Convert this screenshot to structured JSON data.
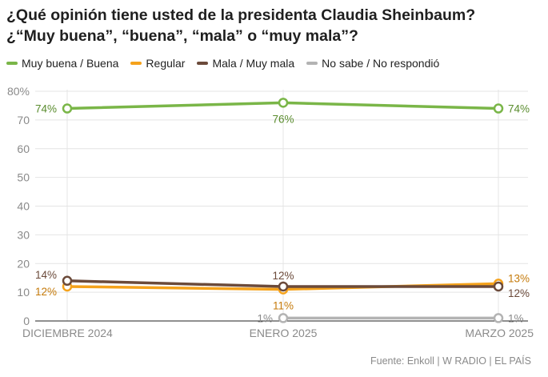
{
  "title_lines": [
    "¿Qué opinión tiene usted de la presidenta Claudia Sheinbaum?",
    "¿“Muy buena”, “buena”, “mala” o “muy mala”?"
  ],
  "source": "Fuente: Enkoll | W RADIO | EL PAÍS",
  "chart_data": {
    "type": "line",
    "title": "¿Qué opinión tiene usted de la presidenta Claudia Sheinbaum? ¿“Muy buena”, “buena”, “mala” o “muy mala”?",
    "categories": [
      "DICIEMBRE 2024",
      "ENERO 2025",
      "MARZO 2025"
    ],
    "ylim": [
      0,
      80
    ],
    "yticks": [
      0,
      10,
      20,
      30,
      40,
      50,
      60,
      70,
      80
    ],
    "ytick_labels": [
      "0",
      "10",
      "20",
      "30",
      "40",
      "50",
      "60",
      "70",
      "80%"
    ],
    "grid": true,
    "legend_position": "top-left",
    "series": [
      {
        "name": "Muy buena / Buena",
        "color": "#7ab648",
        "label_color": "#5a8c2e",
        "values": [
          74,
          76,
          74
        ],
        "labels": [
          "74%",
          "76%",
          "74%"
        ],
        "label_pos": [
          "left",
          "below",
          "right"
        ]
      },
      {
        "name": "Regular",
        "color": "#f5a21b",
        "label_color": "#c57a0a",
        "values": [
          12,
          11,
          13
        ],
        "labels": [
          "12%",
          "11%",
          "13%"
        ],
        "label_pos": [
          "left-below",
          "below",
          "right-above"
        ]
      },
      {
        "name": "Mala / Muy mala",
        "color": "#6b4a3a",
        "label_color": "#6b4a3a",
        "values": [
          14,
          12,
          12
        ],
        "labels": [
          "14%",
          "12%",
          "12%"
        ],
        "label_pos": [
          "left-above",
          "above",
          "right-below"
        ]
      },
      {
        "name": "No sabe / No respondió",
        "color": "#b3b3b3",
        "label_color": "#8a8a8a",
        "values": [
          null,
          1,
          1
        ],
        "labels": [
          "",
          "1%",
          "1%"
        ],
        "label_pos": [
          "",
          "left",
          "right"
        ]
      }
    ]
  }
}
